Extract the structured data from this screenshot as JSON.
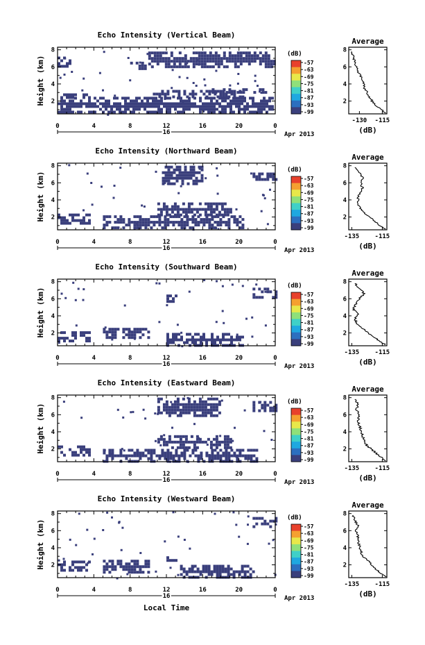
{
  "chart_data": [
    {
      "type": "heatmap",
      "title": "Echo Intensity (Vertical Beam)",
      "ylabel": "Height (km)",
      "x_ticks": [
        "0",
        "4",
        "8",
        "12",
        "16",
        "20",
        "0"
      ],
      "y_ticks": [
        "2",
        "4",
        "6",
        "8"
      ],
      "date_label": "16",
      "month_label": "Apr 2013",
      "xlim": [
        0,
        24
      ],
      "ylim": [
        0.5,
        8.3
      ],
      "echo_regions": [
        {
          "t0": 0,
          "t1": 23.8,
          "h0": 0.6,
          "h1": 2.5
        },
        {
          "t0": 10.5,
          "t1": 20.5,
          "h0": 2.5,
          "h1": 3.3
        },
        {
          "t0": 0,
          "t1": 3.5,
          "h0": 2.5,
          "h1": 2.9
        },
        {
          "t0": 17,
          "t1": 23.5,
          "h0": 3.0,
          "h1": 3.5
        },
        {
          "t0": 10,
          "t1": 24,
          "h0": 6.0,
          "h1": 7.8
        },
        {
          "t0": 8,
          "t1": 10,
          "h0": 5.8,
          "h1": 6.6
        },
        {
          "t0": 0,
          "t1": 1.5,
          "h0": 6.2,
          "h1": 7.2
        }
      ],
      "colorbar": {
        "unit": "(dB)",
        "labels": [
          "-57",
          "-63",
          "-69",
          "-75",
          "-81",
          "-87",
          "-93",
          "-99"
        ]
      },
      "average": {
        "title": "Average",
        "xlabel": "(dB)",
        "x_ticks": [
          "-130",
          "-115"
        ],
        "xlim": [
          -137,
          -112
        ],
        "y": [
          0.6,
          1.2,
          1.8,
          2.4,
          3.0,
          3.6,
          4.2,
          4.8,
          5.4,
          6.0,
          6.6,
          7.2,
          7.8
        ],
        "x": [
          -113,
          -117,
          -121,
          -123,
          -125,
          -127,
          -127,
          -129,
          -131,
          -132,
          -133,
          -134,
          -135
        ]
      }
    },
    {
      "type": "heatmap",
      "title": "Echo Intensity (Northward Beam)",
      "ylabel": "Height (km)",
      "x_ticks": [
        "0",
        "4",
        "8",
        "12",
        "16",
        "20",
        "0"
      ],
      "y_ticks": [
        "2",
        "4",
        "6",
        "8"
      ],
      "date_label": "16",
      "month_label": "Apr 2013",
      "xlim": [
        0,
        24
      ],
      "ylim": [
        0.5,
        8.3
      ],
      "echo_regions": [
        {
          "t0": 0,
          "t1": 3.5,
          "h0": 1.3,
          "h1": 2.4
        },
        {
          "t0": 5,
          "t1": 20.5,
          "h0": 0.6,
          "h1": 2.2
        },
        {
          "t0": 11,
          "t1": 19,
          "h0": 2.2,
          "h1": 3.7
        },
        {
          "t0": 11.5,
          "t1": 16,
          "h0": 6.0,
          "h1": 8.0
        },
        {
          "t0": 21.5,
          "t1": 24,
          "h0": 6.3,
          "h1": 7.2
        }
      ],
      "colorbar": {
        "unit": "(dB)",
        "labels": [
          "-57",
          "-63",
          "-69",
          "-75",
          "-81",
          "-87",
          "-93",
          "-99"
        ]
      },
      "average": {
        "title": "Average",
        "xlabel": "(dB)",
        "x_ticks": [
          "-135",
          "-115"
        ],
        "xlim": [
          -137,
          -112
        ],
        "y": [
          0.6,
          1.2,
          1.8,
          2.4,
          3.0,
          3.6,
          4.2,
          4.8,
          5.4,
          6.0,
          6.6,
          7.2,
          7.8
        ],
        "x": [
          -113,
          -118,
          -122,
          -126,
          -129,
          -131,
          -131,
          -130,
          -128,
          -129,
          -128,
          -130,
          -133
        ]
      }
    },
    {
      "type": "heatmap",
      "title": "Echo Intensity (Southward Beam)",
      "ylabel": "Height (km)",
      "x_ticks": [
        "0",
        "4",
        "8",
        "12",
        "16",
        "20",
        "0"
      ],
      "y_ticks": [
        "2",
        "4",
        "6",
        "8"
      ],
      "date_label": "16",
      "month_label": "Apr 2013",
      "xlim": [
        0,
        24
      ],
      "ylim": [
        0.5,
        8.3
      ],
      "echo_regions": [
        {
          "t0": 0,
          "t1": 3.5,
          "h0": 1.1,
          "h1": 2.2
        },
        {
          "t0": 5,
          "t1": 10,
          "h0": 1.4,
          "h1": 2.6
        },
        {
          "t0": 12,
          "t1": 20.5,
          "h0": 0.6,
          "h1": 2.0
        },
        {
          "t0": 12,
          "t1": 13,
          "h0": 5.3,
          "h1": 6.5
        },
        {
          "t0": 21.5,
          "t1": 24,
          "h0": 6.3,
          "h1": 7.3
        }
      ],
      "colorbar": {
        "unit": "(dB)",
        "labels": [
          "-57",
          "-63",
          "-69",
          "-75",
          "-81",
          "-87",
          "-93",
          "-99"
        ]
      },
      "average": {
        "title": "Average",
        "xlabel": "(dB)",
        "x_ticks": [
          "-135",
          "-115"
        ],
        "xlim": [
          -137,
          -112
        ],
        "y": [
          0.6,
          1.2,
          1.8,
          2.4,
          3.0,
          3.6,
          4.2,
          4.8,
          5.4,
          6.0,
          6.6,
          7.2,
          7.8
        ],
        "x": [
          -113,
          -118,
          -123,
          -127,
          -131,
          -133,
          -131,
          -134,
          -132,
          -130,
          -127,
          -130,
          -133
        ]
      }
    },
    {
      "type": "heatmap",
      "title": "Echo Intensity (Eastward Beam)",
      "ylabel": "Height (km)",
      "x_ticks": [
        "0",
        "4",
        "8",
        "12",
        "16",
        "20",
        "0"
      ],
      "y_ticks": [
        "2",
        "4",
        "6",
        "8"
      ],
      "date_label": "16",
      "month_label": "Apr 2013",
      "xlim": [
        0,
        24
      ],
      "ylim": [
        0.5,
        8.3
      ],
      "echo_regions": [
        {
          "t0": 0,
          "t1": 3.5,
          "h0": 1.2,
          "h1": 2.4
        },
        {
          "t0": 5,
          "t1": 22,
          "h0": 0.6,
          "h1": 2.0
        },
        {
          "t0": 11,
          "t1": 19,
          "h0": 2.0,
          "h1": 3.6
        },
        {
          "t0": 11,
          "t1": 18,
          "h0": 6.0,
          "h1": 8.0
        },
        {
          "t0": 21.5,
          "t1": 24,
          "h0": 6.6,
          "h1": 7.6
        }
      ],
      "colorbar": {
        "unit": "(dB)",
        "labels": [
          "-57",
          "-63",
          "-69",
          "-75",
          "-81",
          "-87",
          "-93",
          "-99"
        ]
      },
      "average": {
        "title": "Average",
        "xlabel": "(dB)",
        "x_ticks": [
          "-135",
          "-115"
        ],
        "xlim": [
          -137,
          -112
        ],
        "y": [
          0.6,
          1.2,
          1.8,
          2.4,
          3.0,
          3.6,
          4.2,
          4.8,
          5.4,
          6.0,
          6.6,
          7.2,
          7.8
        ],
        "x": [
          -113,
          -117,
          -121,
          -125,
          -127,
          -128,
          -129,
          -130,
          -131,
          -130,
          -132,
          -131,
          -133
        ]
      }
    },
    {
      "type": "heatmap",
      "title": "Echo Intensity (Westward Beam)",
      "ylabel": "Height (km)",
      "x_ticks": [
        "0",
        "4",
        "8",
        "12",
        "16",
        "20",
        "0"
      ],
      "y_ticks": [
        "2",
        "4",
        "6",
        "8"
      ],
      "date_label": "16",
      "month_label": "Apr 2013",
      "xlim": [
        0,
        24
      ],
      "ylim": [
        0.5,
        8.3
      ],
      "echo_regions": [
        {
          "t0": 0,
          "t1": 3.5,
          "h0": 1.3,
          "h1": 2.5
        },
        {
          "t0": 5,
          "t1": 10,
          "h0": 1.2,
          "h1": 2.6
        },
        {
          "t0": 12,
          "t1": 13,
          "h0": 2.2,
          "h1": 3.0
        },
        {
          "t0": 13.5,
          "t1": 21.5,
          "h0": 0.6,
          "h1": 2.0
        },
        {
          "t0": 21.5,
          "t1": 24,
          "h0": 6.4,
          "h1": 7.6
        }
      ],
      "colorbar": {
        "unit": "(dB)",
        "labels": [
          "-57",
          "-63",
          "-69",
          "-75",
          "-81",
          "-87",
          "-93",
          "-99"
        ]
      },
      "average": {
        "title": "Average",
        "xlabel": "(dB)",
        "x_ticks": [
          "-135",
          "-115"
        ],
        "xlim": [
          -137,
          -112
        ],
        "y": [
          0.6,
          1.2,
          1.8,
          2.4,
          3.0,
          3.6,
          4.2,
          4.8,
          5.4,
          6.0,
          6.6,
          7.2,
          7.8
        ],
        "x": [
          -113,
          -117,
          -121,
          -124,
          -128,
          -129,
          -130,
          -131,
          -131,
          -132,
          -131,
          -133,
          -134
        ]
      }
    }
  ],
  "xlabel_bottom": "Local Time",
  "colors": {
    "echo": "#3a3f7c",
    "colormap": [
      "#3a3f7c",
      "#2c6fbf",
      "#1fa8e0",
      "#3fd0c8",
      "#8fe07a",
      "#e8e84a",
      "#f5a030",
      "#e8412c"
    ]
  }
}
